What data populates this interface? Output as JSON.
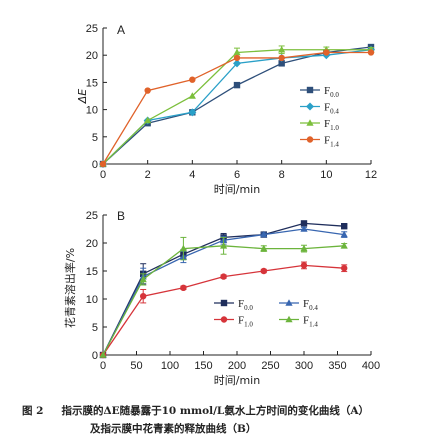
{
  "chart_data": [
    {
      "panel_label": "A",
      "type": "line",
      "xlabel": "时间/min",
      "ylabel": "ΔE",
      "xlim": [
        0,
        12
      ],
      "ylim": [
        0,
        25
      ],
      "xticks": [
        0,
        2,
        4,
        6,
        8,
        10,
        12
      ],
      "yticks": [
        0,
        5,
        10,
        15,
        20,
        25
      ],
      "legend_position": "center-right",
      "series": [
        {
          "name": "F0.0",
          "base": "F",
          "sub": "0.0",
          "color": "#2e4f7a",
          "marker": "square",
          "x": [
            0,
            2,
            4,
            6,
            8,
            10,
            12
          ],
          "y": [
            0,
            7.5,
            9.5,
            14.5,
            18.5,
            20.5,
            21.5
          ]
        },
        {
          "name": "F0.4",
          "base": "F",
          "sub": "0.4",
          "color": "#2aa0c8",
          "marker": "diamond",
          "x": [
            0,
            2,
            4,
            6,
            8,
            10,
            12
          ],
          "y": [
            0,
            8,
            9.5,
            18.5,
            19.5,
            20,
            21
          ]
        },
        {
          "name": "F1.0",
          "base": "F",
          "sub": "1.0",
          "color": "#7cbf3c",
          "marker": "triangle",
          "x": [
            0,
            2,
            4,
            6,
            8,
            10,
            12
          ],
          "y": [
            0,
            8,
            12.5,
            20.5,
            21,
            21,
            21
          ],
          "yerr": [
            0,
            0,
            0,
            0.8,
            0.7,
            0.5,
            0.4
          ]
        },
        {
          "name": "F1.4",
          "base": "F",
          "sub": "1.4",
          "color": "#e0622a",
          "marker": "circle",
          "x": [
            0,
            2,
            4,
            6,
            8,
            10,
            12
          ],
          "y": [
            0,
            13.5,
            15.5,
            19.5,
            19.5,
            20.5,
            20.5
          ]
        }
      ]
    },
    {
      "panel_label": "B",
      "type": "line",
      "xlabel": "时间/min",
      "ylabel": "花青素溶出率/%",
      "xlim": [
        0,
        400
      ],
      "ylim": [
        0,
        25
      ],
      "xticks": [
        0,
        50,
        100,
        150,
        200,
        250,
        300,
        350,
        400
      ],
      "yticks": [
        0,
        5,
        10,
        15,
        20,
        25
      ],
      "legend_position": "lower-right",
      "series": [
        {
          "name": "F0.0",
          "base": "F",
          "sub": "0.0",
          "color": "#1f2e5c",
          "marker": "square",
          "x": [
            0,
            60,
            120,
            180,
            240,
            300,
            360
          ],
          "y": [
            0,
            14.5,
            18,
            21,
            21.5,
            23.5,
            23
          ],
          "yerr": [
            0,
            1.8,
            0.8,
            0.7,
            0.3,
            0.3,
            0.3
          ]
        },
        {
          "name": "F0.4",
          "base": "F",
          "sub": "0.4",
          "color": "#3866b0",
          "marker": "triangle",
          "x": [
            0,
            60,
            120,
            180,
            240,
            300,
            360
          ],
          "y": [
            0,
            14,
            17.5,
            20.5,
            21.5,
            22.5,
            21.5
          ],
          "yerr": [
            0,
            1.5,
            1.0,
            0.7,
            0.3,
            0.3,
            0.5
          ]
        },
        {
          "name": "F1.0",
          "base": "F",
          "sub": "1.0",
          "color": "#d6343a",
          "marker": "circle",
          "x": [
            0,
            60,
            120,
            180,
            240,
            300,
            360
          ],
          "y": [
            0,
            10.5,
            12,
            14,
            15,
            16,
            15.5
          ],
          "yerr": [
            0,
            1.2,
            0.3,
            0.3,
            0.3,
            0.6,
            0.6
          ]
        },
        {
          "name": "F1.4",
          "base": "F",
          "sub": "1.4",
          "color": "#6cb43c",
          "marker": "triangle",
          "x": [
            0,
            60,
            120,
            180,
            240,
            300,
            360
          ],
          "y": [
            0,
            13.5,
            19,
            19.5,
            19,
            19,
            19.5
          ],
          "yerr": [
            0,
            1.0,
            2.0,
            1.5,
            0.5,
            0.6,
            0.4
          ]
        }
      ]
    }
  ],
  "caption": {
    "figure_number": "图 2",
    "line1": "指示膜的ΔE随暴露于10 mmol/L氨水上方时间的变化曲线（A）",
    "line2": "及指示膜中花青素的释放曲线（B）"
  }
}
